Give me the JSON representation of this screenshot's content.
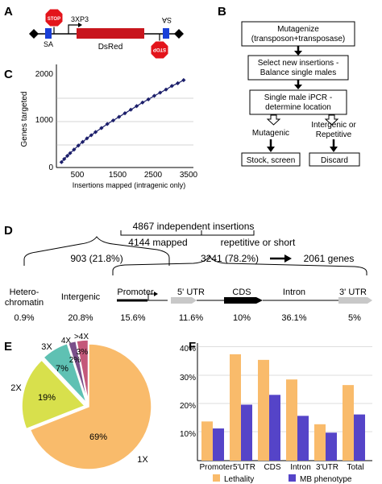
{
  "panels": {
    "a": "A",
    "b": "B",
    "c": "C",
    "d": "D",
    "e": "E",
    "f": "F"
  },
  "panel_a": {
    "stop_left": "STOP",
    "stop_right": "STOP",
    "sa_left": "SA",
    "sa_right": "SA",
    "promoter": "3XP3",
    "gene": "DsRed"
  },
  "panel_b": {
    "steps": [
      "Mutagenize\n(transposon+transposase)",
      "Select new insertions -\nBalance single males",
      "Single male iPCR -\ndetermine location"
    ],
    "branch_left": "Mutagenic",
    "branch_right": "Intergenic or\nRepetitive",
    "end_left": "Stock, screen",
    "end_right": "Discard"
  },
  "panel_c": {
    "ylabel": "Genes targeted",
    "xlabel": "Insertions mapped (intragenic only)"
  },
  "panel_d": {
    "total": "4867 independent insertions",
    "mapped": "4144 mapped",
    "repetitive": "repetitive or short",
    "left": "903 (21.8%)",
    "right": "3241 (78.2%)",
    "genes": "2061 genes",
    "categories": [
      {
        "label": "Hetero-\nchromatin",
        "pct": "0.9%"
      },
      {
        "label": "Intergenic",
        "pct": "20.8%"
      },
      {
        "label": "Promoter",
        "pct": "15.6%"
      },
      {
        "label": "5' UTR",
        "pct": "11.6%"
      },
      {
        "label": "CDS",
        "pct": "10%"
      },
      {
        "label": "Intron",
        "pct": "36.1%"
      },
      {
        "label": "3' UTR",
        "pct": "5%"
      }
    ]
  },
  "chart_data": [
    {
      "type": "line",
      "panel": "C",
      "x": [
        130,
        200,
        280,
        350,
        450,
        560,
        670,
        780,
        890,
        1000,
        1150,
        1300,
        1450,
        1600,
        1750,
        1900,
        2050,
        2200,
        2350,
        2500,
        2650,
        2800,
        2950,
        3100,
        3250
      ],
      "y": [
        120,
        190,
        260,
        320,
        400,
        490,
        570,
        650,
        720,
        790,
        880,
        970,
        1050,
        1130,
        1210,
        1290,
        1370,
        1450,
        1520,
        1600,
        1670,
        1740,
        1820,
        1880,
        1950
      ],
      "xlabel": "Insertions mapped (intragenic only)",
      "ylabel": "Genes targeted",
      "xticks": [
        "500",
        "1500",
        "2500",
        "3500"
      ],
      "yticks": [
        "0",
        "1000",
        "2000"
      ],
      "xlim": [
        0,
        3500
      ],
      "ylim": [
        0,
        2300
      ]
    },
    {
      "type": "pie",
      "panel": "E",
      "categories": [
        "1X",
        "2X",
        "3X",
        "4X",
        ">4X"
      ],
      "values": [
        69,
        19,
        7,
        2,
        3
      ],
      "value_labels": [
        "69%",
        "19%",
        "7%",
        "2%",
        "3%"
      ],
      "colors": [
        "#f9bb6b",
        "#d8e04c",
        "#5fc1b3",
        "#7a4f8a",
        "#c4587a"
      ]
    },
    {
      "type": "bar",
      "panel": "F",
      "categories": [
        "Promoter",
        "5'UTR",
        "CDS",
        "Intron",
        "3'UTR",
        "Total"
      ],
      "series": [
        {
          "name": "Lethality",
          "values": [
            14,
            38,
            36,
            29,
            13,
            27
          ],
          "color": "#f9bb6b"
        },
        {
          "name": "MB phenotype",
          "values": [
            11.5,
            20,
            23.5,
            16,
            10,
            16.5
          ],
          "color": "#5544c8"
        }
      ],
      "yticks": [
        "10%",
        "20%",
        "30%",
        "40%"
      ],
      "ylim": [
        0,
        42
      ],
      "legend": "bottom"
    }
  ]
}
